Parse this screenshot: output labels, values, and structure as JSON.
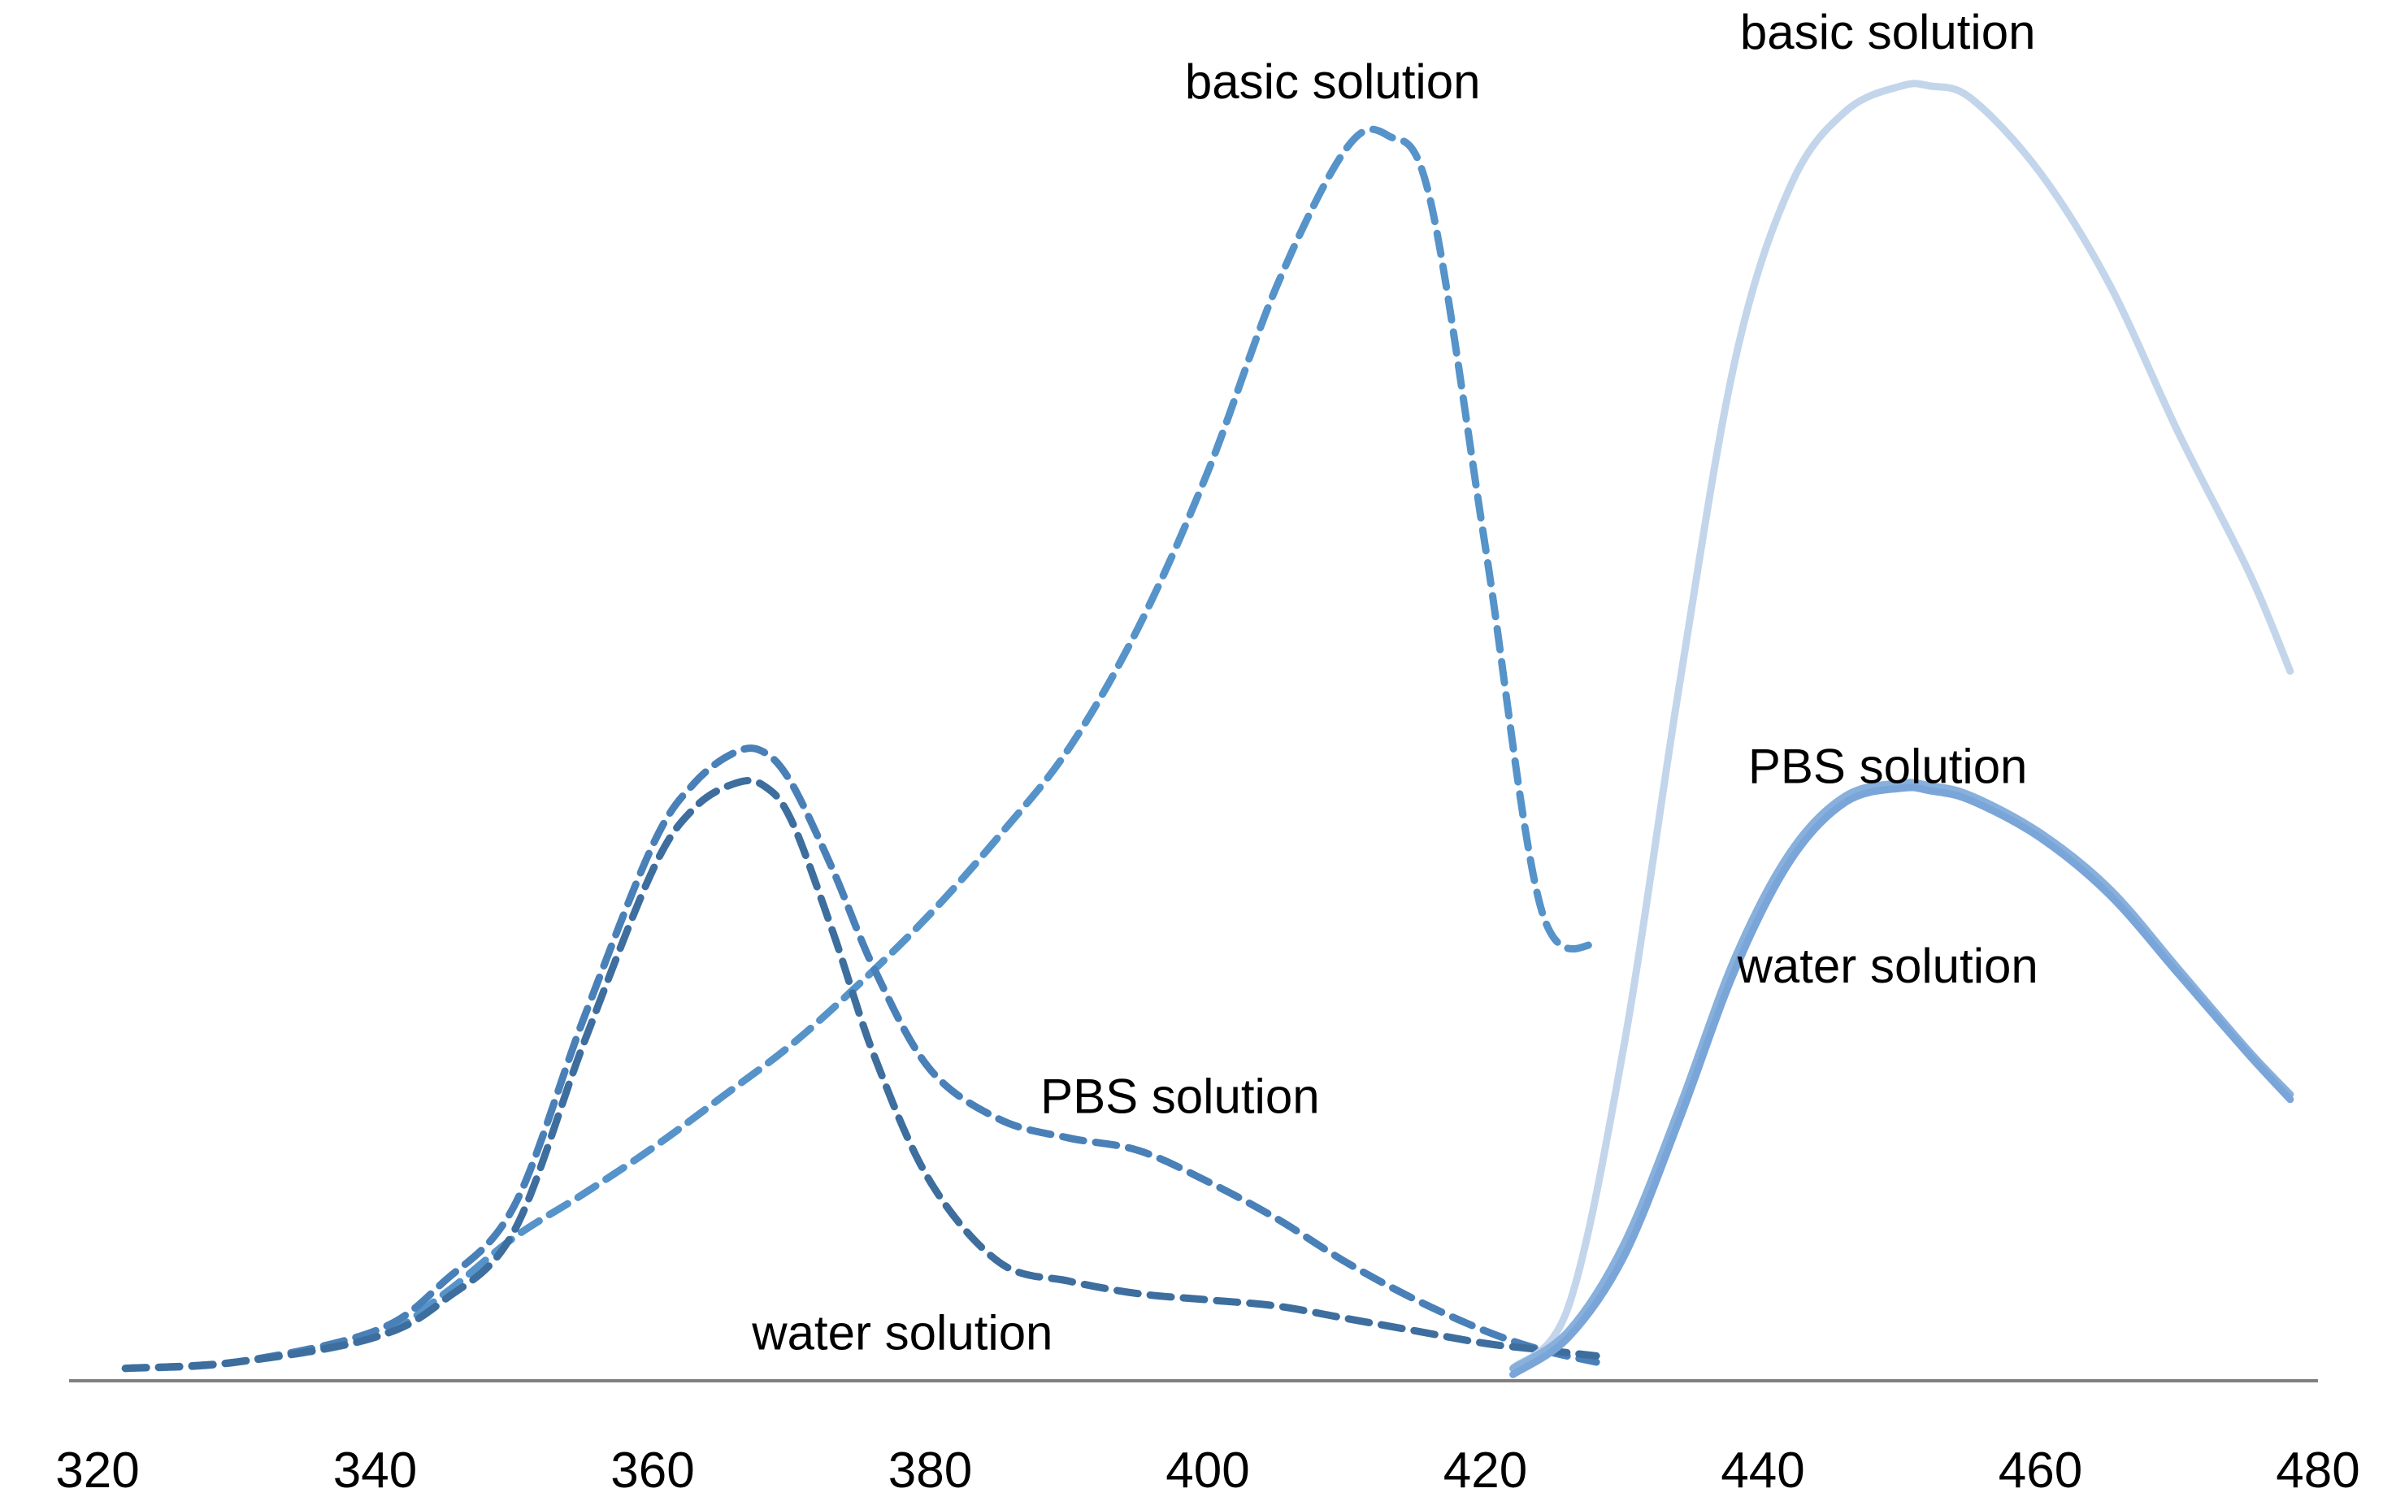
{
  "chart_data": {
    "type": "line",
    "title": "",
    "xlabel": "",
    "ylabel": "",
    "xlim": [
      320,
      480
    ],
    "ylim": [
      0,
      1.0
    ],
    "y_axis_visible": false,
    "grid": false,
    "x_ticks": [
      320,
      340,
      360,
      380,
      400,
      420,
      440,
      460,
      480
    ],
    "tick_labels": [
      "320",
      "340",
      "360",
      "380",
      "400",
      "420",
      "440",
      "460",
      "480"
    ],
    "colors": {
      "excitation_basic": "#5593c9",
      "excitation_pbs": "#4a80b8",
      "excitation_water": "#3d6e9e",
      "emission_basic": "#c3d5ea",
      "emission_pbs": "#88b0dc",
      "emission_water": "#7aa5d8",
      "axis": "#808080"
    },
    "series": [
      {
        "line_style": "dashed",
        "color_key": "excitation_basic",
        "label_text": "basic solution",
        "label_anchor": [
          409,
          1.03
        ],
        "x": [
          322,
          330,
          340,
          345,
          350,
          355,
          360,
          365,
          370,
          375,
          380,
          385,
          390,
          395,
          400,
          405,
          410,
          413,
          416,
          420,
          424,
          428
        ],
        "y": [
          0.01,
          0.015,
          0.035,
          0.07,
          0.115,
          0.15,
          0.187,
          0.228,
          0.27,
          0.32,
          0.375,
          0.438,
          0.508,
          0.605,
          0.73,
          0.88,
          0.99,
          1.0,
          0.95,
          0.67,
          0.38,
          0.35
        ]
      },
      {
        "line_style": "dashed",
        "color_key": "excitation_pbs",
        "label_text": "PBS solution",
        "label_anchor": [
          398,
          0.215
        ],
        "x": [
          322,
          330,
          340,
          345,
          350,
          355,
          360,
          363,
          366,
          368,
          370,
          373,
          376,
          380,
          385,
          390,
          395,
          400,
          405,
          410,
          415,
          420,
          424,
          428
        ],
        "y": [
          0.01,
          0.015,
          0.04,
          0.08,
          0.14,
          0.29,
          0.43,
          0.48,
          0.505,
          0.505,
          0.48,
          0.41,
          0.33,
          0.25,
          0.21,
          0.195,
          0.185,
          0.16,
          0.13,
          0.095,
          0.065,
          0.04,
          0.025,
          0.015
        ]
      },
      {
        "line_style": "dashed",
        "color_key": "excitation_water",
        "label_text": "water solution",
        "label_anchor": [
          378,
          0.025
        ],
        "x": [
          322,
          330,
          340,
          345,
          350,
          355,
          360,
          363,
          366,
          368,
          370,
          373,
          376,
          380,
          385,
          390,
          395,
          400,
          405,
          410,
          415,
          420,
          424,
          428
        ],
        "y": [
          0.01,
          0.015,
          0.035,
          0.065,
          0.12,
          0.27,
          0.41,
          0.46,
          0.48,
          0.478,
          0.45,
          0.36,
          0.26,
          0.16,
          0.095,
          0.08,
          0.07,
          0.065,
          0.06,
          0.05,
          0.04,
          0.03,
          0.025,
          0.02
        ]
      },
      {
        "line_style": "solid",
        "color_key": "emission_basic",
        "label_text": "basic solution",
        "label_anchor": [
          449,
          1.07
        ],
        "x": [
          422,
          426,
          430,
          434,
          438,
          442,
          446,
          450,
          452,
          455,
          460,
          465,
          470,
          475,
          478
        ],
        "y": [
          0.01,
          0.06,
          0.27,
          0.56,
          0.82,
          0.96,
          1.02,
          1.04,
          1.04,
          1.03,
          0.97,
          0.88,
          0.76,
          0.65,
          0.57
        ]
      },
      {
        "line_style": "solid",
        "color_key": "emission_pbs",
        "label_text": "PBS solution",
        "label_anchor": [
          449,
          0.48
        ],
        "x": [
          422,
          426,
          430,
          434,
          438,
          442,
          446,
          450,
          452,
          455,
          460,
          465,
          470,
          475,
          478
        ],
        "y": [
          0.01,
          0.04,
          0.11,
          0.22,
          0.34,
          0.425,
          0.47,
          0.48,
          0.478,
          0.47,
          0.44,
          0.395,
          0.33,
          0.265,
          0.23
        ]
      },
      {
        "line_style": "solid",
        "color_key": "emission_water",
        "label_text": "water solution",
        "label_anchor": [
          449,
          0.32
        ],
        "x": [
          422,
          426,
          430,
          434,
          438,
          442,
          446,
          450,
          452,
          455,
          460,
          465,
          470,
          475,
          478
        ],
        "y": [
          0.005,
          0.035,
          0.1,
          0.21,
          0.33,
          0.418,
          0.465,
          0.476,
          0.474,
          0.466,
          0.436,
          0.39,
          0.326,
          0.262,
          0.226
        ]
      }
    ]
  }
}
